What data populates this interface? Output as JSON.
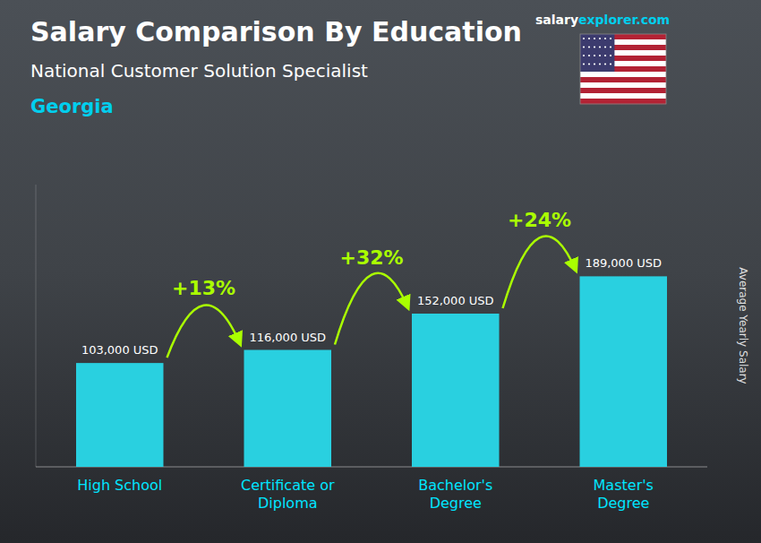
{
  "chart_data": {
    "type": "bar",
    "title": "Salary Comparison By Education",
    "subtitle": "National Customer Solution Specialist",
    "location": "Georgia",
    "logo": [
      "salary",
      "explorer",
      ".com"
    ],
    "y_label": "Average Yearly Salary",
    "categories": [
      "High School",
      "Certificate or\nDiploma",
      "Bachelor's\nDegree",
      "Master's\nDegree"
    ],
    "values": [
      103000,
      116000,
      152000,
      189000
    ],
    "value_labels": [
      "103,000 USD",
      "116,000 USD",
      "152,000 USD",
      "189,000 USD"
    ],
    "annotations": [
      "+13%",
      "+32%",
      "+24%"
    ],
    "color": "#29d0e0",
    "ylim": [
      0,
      280000
    ],
    "data_labels": true,
    "tick_labels": "x"
  }
}
